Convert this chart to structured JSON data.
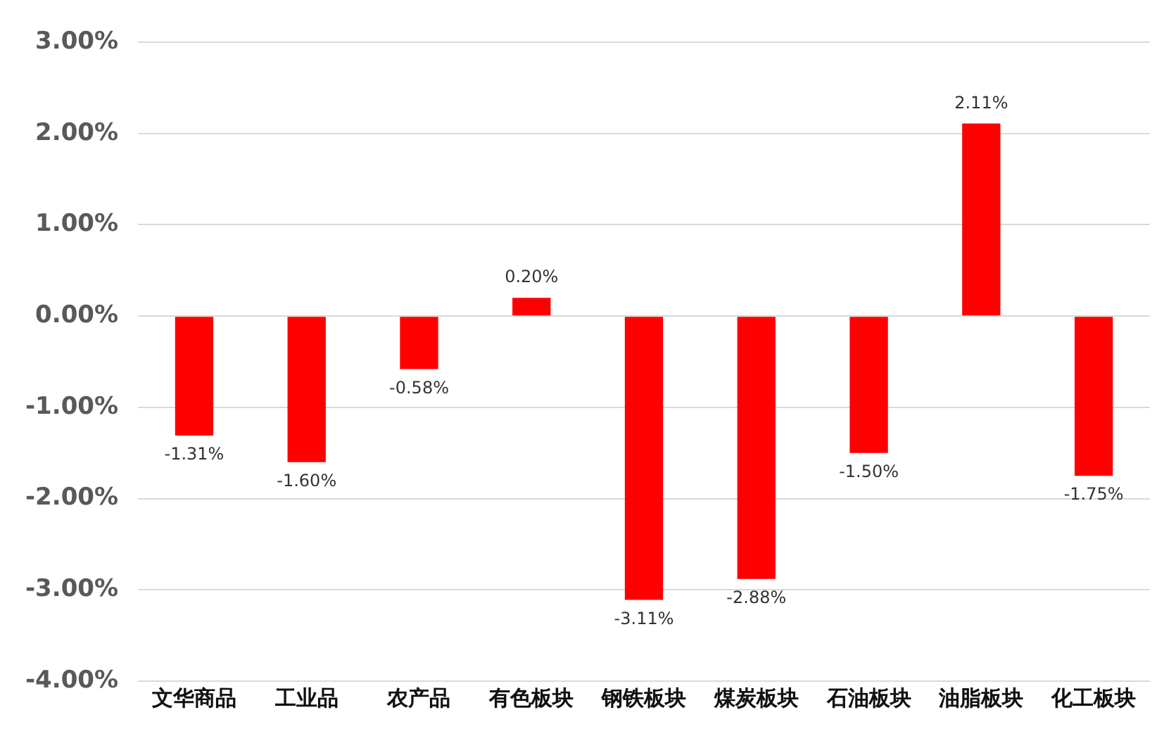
{
  "chart_data": {
    "type": "bar",
    "categories": [
      "文华商品",
      "工业品",
      "农产品",
      "有色板块",
      "钢铁板块",
      "煤炭板块",
      "石油板块",
      "油脂板块",
      "化工板块"
    ],
    "values": [
      -1.31,
      -1.6,
      -0.58,
      0.2,
      -3.11,
      -2.88,
      -1.5,
      2.11,
      -1.75
    ],
    "value_labels": [
      "-1.31%",
      "-1.60%",
      "-0.58%",
      "0.20%",
      "-3.11%",
      "-2.88%",
      "-1.50%",
      "2.11%",
      "-1.75%"
    ],
    "color": "#ff0000",
    "ylim": [
      -4,
      3
    ],
    "yticks": [
      {
        "value": -4,
        "label": "-4.00%"
      },
      {
        "value": -3,
        "label": "-3.00%"
      },
      {
        "value": -2,
        "label": "-2.00%"
      },
      {
        "value": -1,
        "label": "-1.00%"
      },
      {
        "value": 0,
        "label": "0.00%"
      },
      {
        "value": 1,
        "label": "1.00%"
      },
      {
        "value": 2,
        "label": "2.00%"
      },
      {
        "value": 3,
        "label": "3.00%"
      }
    ],
    "grid": "y",
    "legend": false
  }
}
